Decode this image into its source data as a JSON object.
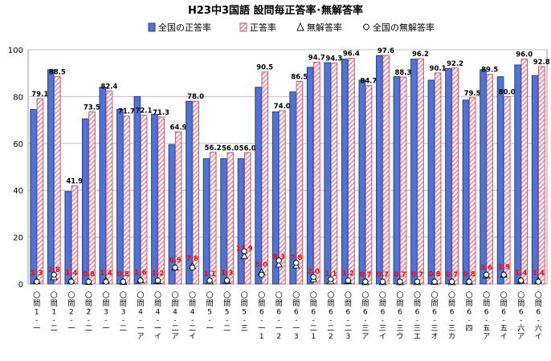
{
  "chart_data": {
    "type": "bar",
    "title": "H23中3国語 設問毎正答率･無解答率",
    "ylim": [
      0,
      100
    ],
    "yticks": [
      0,
      20,
      40,
      60,
      80,
      100
    ],
    "grid": true,
    "legend_position": "top",
    "categories": [
      "問1-一",
      "問1-二",
      "問2-一",
      "問2-二",
      "問3-一",
      "問3-二",
      "問4-一ア",
      "問4-一イ",
      "問4-二ア",
      "問4-二イ",
      "問5-一",
      "問5-二",
      "問5-三",
      "問6-一1",
      "問6-一2",
      "問6-一3",
      "問6-二1",
      "問6-二2",
      "問6-二3",
      "問6-三ア",
      "問6-三イ",
      "問6-三ウ",
      "問6-三エ",
      "問6-三オ",
      "問6-三カ",
      "問6-四",
      "問6-五ア",
      "問6-五イ",
      "問6-六ア",
      "問6-六イ"
    ],
    "category_labels": [
      "〇問1-一",
      "〇問1-二",
      "〇問2-一",
      "〇問2-二",
      "〇問3-一",
      "〇問3-二",
      "〇問4-一ア",
      "〇問4-一イ",
      "〇問4-二ア",
      "〇問4-二イ",
      "〇問5-一",
      "〇問5-二",
      "〇問5-三",
      "〇問6-一1",
      "〇問6-一2",
      "〇問6-一3",
      "〇問6-二1",
      "〇問6-二2",
      "〇問6-二3",
      "〇問6-三ア",
      "〇問6-三イ",
      "〇問6-三ウ",
      "〇問6-三エ",
      "〇問6-三オ",
      "〇問6-三カ",
      "〇問6-四",
      "〇問6-五ア",
      "〇問6-五イ",
      "〇問6-六ア",
      "〇問6-六イ"
    ],
    "series": [
      {
        "name": "全国の正答率",
        "color": "#4f74d6",
        "style": "solid-bar",
        "values": [
          74.5,
          91.5,
          39.5,
          70.5,
          84.0,
          74.5,
          80.0,
          72.5,
          59.5,
          78.0,
          53.5,
          53.5,
          53.5,
          84.0,
          73.5,
          82.0,
          92.5,
          94.5,
          96.0,
          87.0,
          97.5,
          88.5,
          96.0,
          87.0,
          92.0,
          78.5,
          91.5,
          88.5,
          93.5,
          89.0
        ]
      },
      {
        "name": "正答率",
        "color": "#f4c8cf",
        "style": "hatched-bar",
        "values": [
          79.1,
          88.5,
          41.9,
          73.5,
          82.4,
          71.7,
          72.1,
          71.3,
          64.9,
          78.0,
          56.2,
          56.0,
          56.0,
          90.5,
          74.0,
          86.5,
          94.7,
          94.3,
          96.4,
          84.7,
          97.6,
          88.3,
          96.2,
          90.1,
          92.2,
          79.5,
          89.5,
          80.0,
          96.0,
          92.8
        ],
        "labels": [
          "79.1",
          "88.5",
          "41.9",
          "73.5",
          "82.4",
          "71.7",
          "72.1",
          "71.3",
          "64.9",
          "78.0",
          "56.2",
          "56.0",
          "56.0",
          "90.5",
          "74.0",
          "86.5",
          "94.7",
          "94.3",
          "96.4",
          "84.7",
          "97.6",
          "88.3",
          "96.2",
          "90.1",
          "92.2",
          "79.5",
          "89.5",
          "80.0",
          "96.0",
          "92.8"
        ]
      },
      {
        "name": "無解答率",
        "color": "#ffffff",
        "style": "triangle-marker",
        "values": [
          1.3,
          2.8,
          1.4,
          0.8,
          1.4,
          0.8,
          1.6,
          1.2,
          6.9,
          7.6,
          1.1,
          1.3,
          11.9,
          5.0,
          8.3,
          7.8,
          2.0,
          1.1,
          1.2,
          0.7,
          0.7,
          0.7,
          0.7,
          0.8,
          0.7,
          0.8,
          3.6,
          3.9,
          1.4,
          1.4
        ],
        "labels": [
          "1.3",
          "2.8",
          "1.4",
          "0.8",
          "1.4",
          "0.8",
          "1.6",
          "1.2",
          "6.9",
          "7.6",
          "1.1",
          "1.3",
          "11.9",
          "5.0",
          "8.3",
          "7.8",
          "2.0",
          "1.1",
          "1.2",
          "0.7",
          "0.7",
          "0.7",
          "0.7",
          "0.8",
          "0.7",
          "0.8",
          "3.6",
          "3.9",
          "1.4",
          "1.4"
        ],
        "label_color": "#ff0000"
      },
      {
        "name": "全国の無解答率",
        "color": "#ffffff",
        "style": "circle-marker",
        "values": [
          1.0,
          4.0,
          1.0,
          1.0,
          1.0,
          1.0,
          1.5,
          1.5,
          7.0,
          7.0,
          1.5,
          1.5,
          14.0,
          4.0,
          10.0,
          9.0,
          3.0,
          2.0,
          1.5,
          1.0,
          1.0,
          1.0,
          1.0,
          1.0,
          1.0,
          1.0,
          4.0,
          4.0,
          1.5,
          1.0
        ]
      }
    ]
  }
}
